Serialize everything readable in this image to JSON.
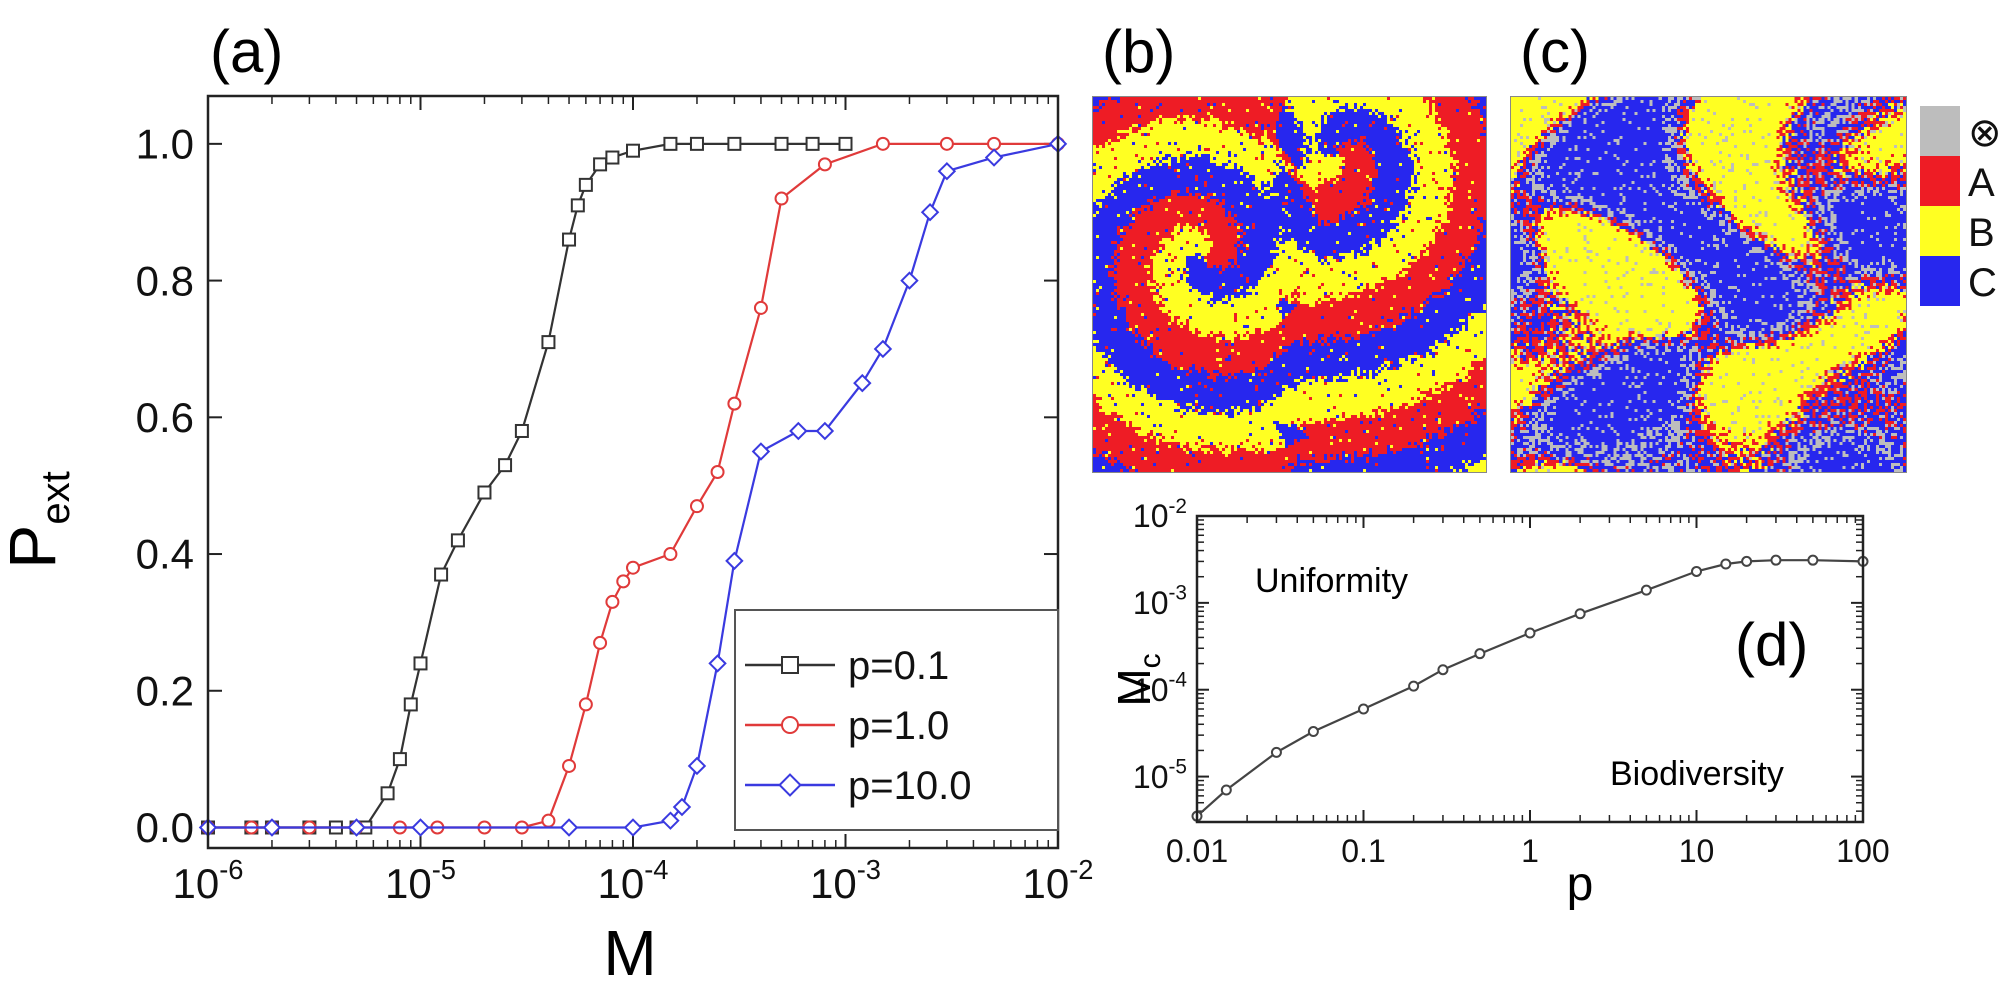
{
  "chart_data": [
    {
      "id": "a",
      "panel_label": "(a)",
      "type": "line",
      "xscale": "log",
      "xlim": [
        1e-06,
        0.01
      ],
      "ylim": [
        -0.03,
        1.07
      ],
      "xlabel": "M",
      "ylabel": "P",
      "ylabel_sub": "ext",
      "x_ticks": [
        {
          "v": 1e-06,
          "exp": "-6"
        },
        {
          "v": 1e-05,
          "exp": "-5"
        },
        {
          "v": 0.0001,
          "exp": "-4"
        },
        {
          "v": 0.001,
          "exp": "-3"
        },
        {
          "v": 0.01,
          "exp": "-2"
        }
      ],
      "x_tick_base": "10",
      "y_ticks": [
        {
          "v": 0.0,
          "label": "0.0"
        },
        {
          "v": 0.2,
          "label": "0.2"
        },
        {
          "v": 0.4,
          "label": "0.4"
        },
        {
          "v": 0.6,
          "label": "0.6"
        },
        {
          "v": 0.8,
          "label": "0.8"
        },
        {
          "v": 1.0,
          "label": "1.0"
        }
      ],
      "legend_position": "bottom-right",
      "series": [
        {
          "name": "p=0.1",
          "color": "#333333",
          "marker": "square",
          "x": [
            1e-06,
            1.6e-06,
            2e-06,
            3e-06,
            4e-06,
            5e-06,
            5.5e-06,
            7e-06,
            8e-06,
            9e-06,
            1e-05,
            1.25e-05,
            1.5e-05,
            2e-05,
            2.5e-05,
            3e-05,
            4e-05,
            5e-05,
            5.5e-05,
            6e-05,
            7e-05,
            8e-05,
            0.0001,
            0.00015,
            0.0002,
            0.0003,
            0.0005,
            0.0007,
            0.001
          ],
          "y": [
            0.0,
            0.0,
            0.0,
            0.0,
            0.0,
            0.0,
            0.0,
            0.05,
            0.1,
            0.18,
            0.24,
            0.37,
            0.42,
            0.49,
            0.53,
            0.58,
            0.71,
            0.86,
            0.91,
            0.94,
            0.97,
            0.98,
            0.99,
            1.0,
            1.0,
            1.0,
            1.0,
            1.0,
            1.0
          ]
        },
        {
          "name": "p=1.0",
          "color": "#e03a3a",
          "marker": "circle",
          "x": [
            1e-06,
            1.6e-06,
            2e-06,
            3e-06,
            5e-06,
            8e-06,
            1.2e-05,
            2e-05,
            3e-05,
            4e-05,
            5e-05,
            6e-05,
            7e-05,
            8e-05,
            9e-05,
            0.0001,
            0.00015,
            0.0002,
            0.00025,
            0.0003,
            0.0004,
            0.0005,
            0.0008,
            0.0015,
            0.003,
            0.005,
            0.01
          ],
          "y": [
            0.0,
            0.0,
            0.0,
            0.0,
            0.0,
            0.0,
            0.0,
            0.0,
            0.0,
            0.01,
            0.09,
            0.18,
            0.27,
            0.33,
            0.36,
            0.38,
            0.4,
            0.47,
            0.52,
            0.62,
            0.76,
            0.92,
            0.97,
            1.0,
            1.0,
            1.0,
            1.0
          ]
        },
        {
          "name": "p=10.0",
          "color": "#3a3ae0",
          "marker": "diamond",
          "x": [
            1e-06,
            2e-06,
            5e-06,
            1e-05,
            5e-05,
            0.0001,
            0.00015,
            0.00017,
            0.0002,
            0.00025,
            0.0003,
            0.0004,
            0.0006,
            0.0008,
            0.0012,
            0.0015,
            0.002,
            0.0025,
            0.003,
            0.005,
            0.01
          ],
          "y": [
            0.0,
            0.0,
            0.0,
            0.0,
            0.0,
            0.0,
            0.01,
            0.03,
            0.09,
            0.24,
            0.39,
            0.55,
            0.58,
            0.58,
            0.65,
            0.7,
            0.8,
            0.9,
            0.96,
            0.98,
            1.0
          ]
        }
      ]
    },
    {
      "id": "d",
      "panel_label": "(d)",
      "type": "line",
      "xscale": "log",
      "yscale": "log",
      "xlim": [
        0.01,
        100
      ],
      "ylim": [
        3e-06,
        0.01
      ],
      "xlabel": "p",
      "ylabel": "M",
      "ylabel_sub": "c",
      "x_ticks": [
        {
          "v": 0.01,
          "label": "0.01"
        },
        {
          "v": 0.1,
          "label": "0.1"
        },
        {
          "v": 1,
          "label": "1"
        },
        {
          "v": 10,
          "label": "10"
        },
        {
          "v": 100,
          "label": "100"
        }
      ],
      "y_ticks": [
        {
          "v": 1e-05,
          "exp": "-5"
        },
        {
          "v": 0.0001,
          "exp": "-4"
        },
        {
          "v": 0.001,
          "exp": "-3"
        },
        {
          "v": 0.01,
          "exp": "-2"
        }
      ],
      "y_tick_base": "10",
      "annotations": [
        "Uniformity",
        "Biodiversity"
      ],
      "series": [
        {
          "name": "M_c",
          "color": "#444444",
          "marker": "circle",
          "x": [
            0.01,
            0.015,
            0.03,
            0.05,
            0.1,
            0.2,
            0.3,
            0.5,
            1,
            2,
            5,
            10,
            15,
            20,
            30,
            50,
            100
          ],
          "y": [
            3.5e-06,
            7e-06,
            1.9e-05,
            3.3e-05,
            6e-05,
            0.00011,
            0.00017,
            0.00026,
            0.00045,
            0.00075,
            0.0014,
            0.0023,
            0.0028,
            0.003,
            0.0031,
            0.0031,
            0.003
          ]
        }
      ]
    }
  ],
  "panels": {
    "b": {
      "label": "(b)"
    },
    "c": {
      "label": "(c)"
    }
  },
  "colorbar": {
    "entries": [
      {
        "label": "⊗",
        "color": "#bdbdbd"
      },
      {
        "label": "A",
        "color": "#ee1c25"
      },
      {
        "label": "B",
        "color": "#ffff22"
      },
      {
        "label": "C",
        "color": "#2727ee"
      }
    ]
  }
}
